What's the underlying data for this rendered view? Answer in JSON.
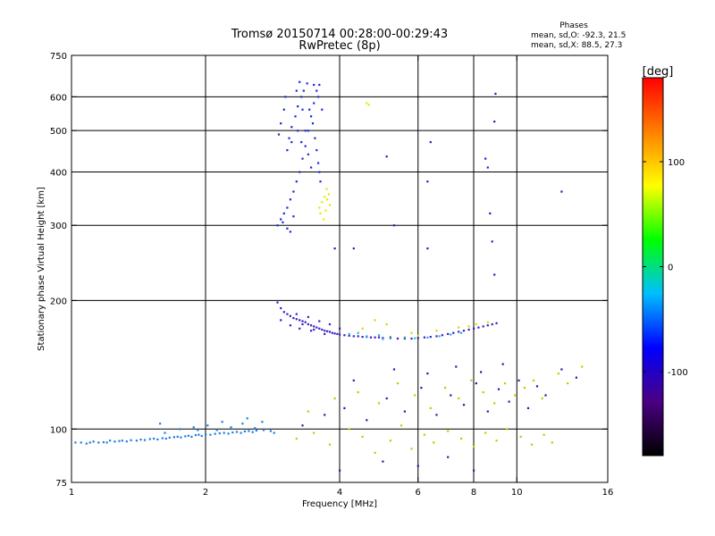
{
  "chart_data": {
    "type": "scatter",
    "title": "Tromsø 20150714 00:28:00-00:29:43",
    "subtitle": "RwPretec (8p)",
    "annotation": {
      "heading": "Phases",
      "line1": "mean, sd,O: -92.3, 21.5",
      "line2": "mean, sd,X:  88.5, 27.3"
    },
    "xlabel": "Frequency [MHz]",
    "ylabel": "Stationary phase Virtual Height [km]",
    "x_scale": "log",
    "y_scale": "log",
    "xlim": [
      1,
      16
    ],
    "ylim": [
      75,
      750
    ],
    "grid": true,
    "x_ticks": [
      1,
      2,
      4,
      6,
      8,
      10,
      16
    ],
    "y_ticks": [
      75,
      100,
      200,
      300,
      400,
      500,
      600,
      750
    ],
    "x_gridlines": [
      2,
      4,
      6,
      8,
      10
    ],
    "y_gridlines": [
      100,
      200,
      300,
      400,
      500,
      600
    ],
    "colorbar": {
      "label": "[deg]",
      "range": [
        -180,
        180
      ],
      "ticks": [
        -100,
        0,
        100
      ],
      "colormap": [
        "#000000",
        "#4b0082",
        "#0000ff",
        "#00bfff",
        "#00ff00",
        "#ffff00",
        "#ff8000",
        "#ff0000"
      ]
    },
    "series": [
      {
        "trace": "E-region trace",
        "color": "#1e7fe0",
        "points": [
          [
            1.02,
            93
          ],
          [
            1.05,
            93
          ],
          [
            1.08,
            92.5
          ],
          [
            1.1,
            93
          ],
          [
            1.12,
            93.5
          ],
          [
            1.15,
            93
          ],
          [
            1.18,
            93.2
          ],
          [
            1.2,
            93
          ],
          [
            1.22,
            94
          ],
          [
            1.25,
            93.5
          ],
          [
            1.28,
            93.8
          ],
          [
            1.3,
            94
          ],
          [
            1.33,
            93.6
          ],
          [
            1.36,
            94.2
          ],
          [
            1.4,
            94
          ],
          [
            1.43,
            94.5
          ],
          [
            1.46,
            94.3
          ],
          [
            1.5,
            94.8
          ],
          [
            1.53,
            95
          ],
          [
            1.56,
            94.6
          ],
          [
            1.6,
            95.2
          ],
          [
            1.63,
            95
          ],
          [
            1.66,
            95.5
          ],
          [
            1.7,
            95.8
          ],
          [
            1.73,
            96
          ],
          [
            1.76,
            95.6
          ],
          [
            1.8,
            96.2
          ],
          [
            1.83,
            96.5
          ],
          [
            1.86,
            96
          ],
          [
            1.9,
            96.8
          ],
          [
            1.93,
            97
          ],
          [
            1.96,
            96.4
          ],
          [
            2.0,
            97.2
          ],
          [
            2.05,
            97
          ],
          [
            2.1,
            97.5
          ],
          [
            2.15,
            97.8
          ],
          [
            2.2,
            98
          ],
          [
            2.25,
            97.6
          ],
          [
            2.3,
            98.2
          ],
          [
            2.35,
            98.5
          ],
          [
            2.4,
            98
          ],
          [
            2.45,
            98.8
          ],
          [
            2.5,
            99
          ],
          [
            2.55,
            98.4
          ],
          [
            2.6,
            99.2
          ],
          [
            2.7,
            99.5
          ],
          [
            2.8,
            99
          ],
          [
            1.62,
            98
          ],
          [
            1.75,
            100
          ],
          [
            1.88,
            101
          ],
          [
            2.02,
            102
          ],
          [
            2.12,
            99.5
          ],
          [
            2.28,
            101
          ],
          [
            2.42,
            103
          ],
          [
            2.58,
            100.5
          ],
          [
            2.68,
            104
          ],
          [
            2.85,
            98
          ],
          [
            1.58,
            103
          ],
          [
            2.18,
            104
          ],
          [
            2.48,
            106
          ],
          [
            1.92,
            99.5
          ]
        ]
      },
      {
        "trace": "F-region O-mode trace",
        "color": "#3a1fc8",
        "points": [
          [
            2.9,
            198
          ],
          [
            2.95,
            192
          ],
          [
            3.0,
            188
          ],
          [
            3.05,
            186
          ],
          [
            3.1,
            184
          ],
          [
            3.15,
            182
          ],
          [
            3.2,
            181
          ],
          [
            3.25,
            180
          ],
          [
            3.3,
            179
          ],
          [
            3.35,
            178
          ],
          [
            3.4,
            176
          ],
          [
            3.45,
            175
          ],
          [
            3.5,
            174
          ],
          [
            3.55,
            173
          ],
          [
            3.6,
            172
          ],
          [
            3.65,
            171
          ],
          [
            3.7,
            170
          ],
          [
            3.75,
            169.5
          ],
          [
            3.8,
            169
          ],
          [
            3.85,
            168
          ],
          [
            3.9,
            167.5
          ],
          [
            3.95,
            167
          ],
          [
            4.0,
            166.5
          ],
          [
            4.1,
            166
          ],
          [
            4.2,
            165.5
          ],
          [
            4.3,
            165
          ],
          [
            4.4,
            165
          ],
          [
            4.5,
            164.5
          ],
          [
            4.6,
            164.5
          ],
          [
            4.7,
            164
          ],
          [
            4.8,
            164
          ],
          [
            4.9,
            164
          ],
          [
            5.0,
            163.5
          ],
          [
            5.2,
            163.5
          ],
          [
            5.4,
            163
          ],
          [
            5.6,
            163
          ],
          [
            5.8,
            163
          ],
          [
            6.0,
            163.5
          ],
          [
            6.2,
            164
          ],
          [
            6.4,
            164.5
          ],
          [
            6.6,
            165
          ],
          [
            6.8,
            166
          ],
          [
            7.0,
            167
          ],
          [
            7.2,
            168
          ],
          [
            7.4,
            169
          ],
          [
            7.6,
            170
          ],
          [
            7.8,
            171
          ],
          [
            8.0,
            172
          ],
          [
            8.2,
            173
          ],
          [
            8.4,
            174
          ],
          [
            8.6,
            175
          ],
          [
            8.8,
            176
          ],
          [
            9.0,
            177
          ],
          [
            3.2,
            186
          ],
          [
            3.4,
            183
          ],
          [
            3.6,
            179
          ],
          [
            3.8,
            176
          ],
          [
            4.0,
            172
          ],
          [
            3.3,
            176
          ],
          [
            3.5,
            171
          ],
          [
            3.7,
            167
          ],
          [
            2.95,
            180
          ],
          [
            3.1,
            175
          ],
          [
            3.25,
            172
          ],
          [
            3.45,
            170
          ]
        ]
      },
      {
        "trace": "F-region near-zero-phase points",
        "color": "#22b8d8",
        "points": [
          [
            4.6,
            165
          ],
          [
            4.9,
            166
          ],
          [
            5.2,
            164.5
          ],
          [
            5.6,
            164
          ],
          [
            5.9,
            163.2
          ],
          [
            6.3,
            163.8
          ],
          [
            6.7,
            165
          ],
          [
            7.1,
            166.5
          ],
          [
            7.5,
            168
          ],
          [
            4.2,
            167
          ],
          [
            4.4,
            168
          ],
          [
            5.0,
            162.5
          ]
        ]
      },
      {
        "trace": "F-region positive-phase points",
        "color": "#d8d800",
        "points": [
          [
            4.5,
            172
          ],
          [
            5.1,
            176
          ],
          [
            5.8,
            168
          ],
          [
            6.6,
            170
          ],
          [
            7.4,
            173
          ],
          [
            8.1,
            176
          ],
          [
            8.6,
            178
          ],
          [
            4.8,
            180
          ],
          [
            6.0,
            165.5
          ],
          [
            7.8,
            174
          ]
        ]
      },
      {
        "trace": "High-altitude spread echoes",
        "color": "#1a2ad8",
        "points": [
          [
            2.9,
            300
          ],
          [
            2.95,
            310
          ],
          [
            3.0,
            320
          ],
          [
            3.05,
            330
          ],
          [
            3.1,
            345
          ],
          [
            3.15,
            360
          ],
          [
            3.2,
            380
          ],
          [
            3.25,
            400
          ],
          [
            3.3,
            430
          ],
          [
            3.35,
            460
          ],
          [
            3.4,
            500
          ],
          [
            3.45,
            540
          ],
          [
            3.5,
            580
          ],
          [
            3.55,
            620
          ],
          [
            3.6,
            640
          ],
          [
            2.92,
            490
          ],
          [
            2.95,
            520
          ],
          [
            3.0,
            560
          ],
          [
            3.02,
            600
          ],
          [
            3.05,
            450
          ],
          [
            3.08,
            480
          ],
          [
            3.12,
            510
          ],
          [
            3.18,
            540
          ],
          [
            3.22,
            570
          ],
          [
            3.28,
            600
          ],
          [
            3.32,
            620
          ],
          [
            3.38,
            645
          ],
          [
            3.42,
            560
          ],
          [
            3.48,
            520
          ],
          [
            3.52,
            480
          ],
          [
            3.55,
            450
          ],
          [
            3.58,
            420
          ],
          [
            3.6,
            400
          ],
          [
            3.62,
            380
          ],
          [
            3.2,
            620
          ],
          [
            3.25,
            650
          ],
          [
            3.3,
            560
          ],
          [
            3.35,
            500
          ],
          [
            3.4,
            440
          ],
          [
            3.45,
            410
          ],
          [
            3.1,
            290
          ],
          [
            3.05,
            295
          ],
          [
            2.98,
            305
          ],
          [
            3.15,
            315
          ],
          [
            3.5,
            640
          ],
          [
            3.58,
            600
          ],
          [
            3.65,
            560
          ],
          [
            3.12,
            470
          ],
          [
            3.22,
            500
          ],
          [
            3.28,
            470
          ]
        ]
      },
      {
        "trace": "Scattered low-altitude echoes (mixed phase)",
        "color": "#c8c800",
        "points": [
          [
            3.2,
            95
          ],
          [
            3.5,
            98
          ],
          [
            3.8,
            92
          ],
          [
            4.2,
            100
          ],
          [
            4.5,
            96
          ],
          [
            4.8,
            88
          ],
          [
            5.2,
            94
          ],
          [
            5.5,
            102
          ],
          [
            5.8,
            90
          ],
          [
            6.2,
            97
          ],
          [
            6.5,
            93
          ],
          [
            7.0,
            99
          ],
          [
            7.5,
            95
          ],
          [
            8.0,
            91
          ],
          [
            8.5,
            98
          ],
          [
            9.0,
            94
          ],
          [
            9.5,
            100
          ],
          [
            10.2,
            96
          ],
          [
            10.8,
            92
          ],
          [
            11.5,
            97
          ],
          [
            12.0,
            93
          ],
          [
            3.4,
            110
          ],
          [
            3.9,
            118
          ],
          [
            4.4,
            122
          ],
          [
            4.9,
            115
          ],
          [
            5.4,
            128
          ],
          [
            5.9,
            120
          ],
          [
            6.4,
            112
          ],
          [
            6.9,
            125
          ],
          [
            7.4,
            118
          ],
          [
            7.9,
            130
          ],
          [
            8.4,
            122
          ],
          [
            8.9,
            115
          ],
          [
            9.4,
            128
          ],
          [
            9.9,
            120
          ],
          [
            10.4,
            125
          ],
          [
            10.9,
            130
          ],
          [
            11.4,
            118
          ],
          [
            12.4,
            135
          ],
          [
            13.0,
            128
          ],
          [
            14.0,
            140
          ]
        ]
      },
      {
        "trace": "Scattered echoes (mixed phase, cool)",
        "color": "#2a1aa8",
        "points": [
          [
            3.3,
            102
          ],
          [
            3.7,
            108
          ],
          [
            4.1,
            112
          ],
          [
            4.6,
            105
          ],
          [
            5.1,
            118
          ],
          [
            5.6,
            110
          ],
          [
            6.1,
            125
          ],
          [
            6.6,
            108
          ],
          [
            7.1,
            120
          ],
          [
            7.6,
            114
          ],
          [
            8.1,
            128
          ],
          [
            8.6,
            110
          ],
          [
            9.1,
            124
          ],
          [
            9.6,
            116
          ],
          [
            10.1,
            130
          ],
          [
            10.6,
            112
          ],
          [
            11.1,
            126
          ],
          [
            11.6,
            120
          ],
          [
            12.6,
            138
          ],
          [
            13.6,
            132
          ],
          [
            4.3,
            130
          ],
          [
            5.3,
            138
          ],
          [
            6.3,
            135
          ],
          [
            7.3,
            140
          ],
          [
            8.3,
            136
          ],
          [
            9.3,
            142
          ],
          [
            4.0,
            80
          ],
          [
            5.0,
            84
          ],
          [
            6.0,
            82
          ],
          [
            7.0,
            86
          ],
          [
            8.0,
            80
          ]
        ]
      },
      {
        "trace": "Isolated positive-phase cluster",
        "color": "#e8e800",
        "points": [
          [
            3.6,
            330
          ],
          [
            3.65,
            340
          ],
          [
            3.7,
            350
          ],
          [
            3.75,
            345
          ],
          [
            3.8,
            335
          ],
          [
            3.62,
            320
          ],
          [
            3.72,
            325
          ],
          [
            3.78,
            355
          ],
          [
            3.68,
            310
          ],
          [
            3.74,
            365
          ],
          [
            4.6,
            580
          ],
          [
            4.65,
            575
          ]
        ]
      },
      {
        "trace": "Sparse high-frequency echoes",
        "color": "#2020c8",
        "points": [
          [
            5.1,
            435
          ],
          [
            5.3,
            300
          ],
          [
            6.3,
            265
          ],
          [
            6.3,
            380
          ],
          [
            6.4,
            470
          ],
          [
            8.5,
            430
          ],
          [
            8.6,
            410
          ],
          [
            8.7,
            320
          ],
          [
            8.8,
            275
          ],
          [
            8.9,
            230
          ],
          [
            8.95,
            610
          ],
          [
            8.9,
            525
          ],
          [
            4.3,
            265
          ],
          [
            3.9,
            265
          ],
          [
            12.6,
            360
          ]
        ]
      }
    ]
  }
}
